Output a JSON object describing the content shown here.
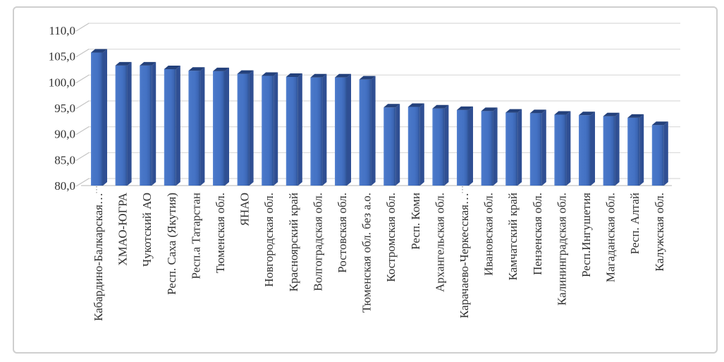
{
  "chart_data": {
    "type": "bar",
    "title": "",
    "xlabel": "",
    "ylabel": "",
    "categories": [
      "Кабардино-Балкарская…",
      "ХМАО-ЮГРА",
      "Чукотский АО",
      "Респ. Саха (Якутия)",
      "Респ.а Татарстан",
      "Тюменская обл.",
      "ЯНАО",
      "Новгородская обл.",
      "Красноярский край",
      "Волгоградская обл.",
      "Ростовская обл.",
      "Тюменская обл. без а.о.",
      "Костромская обл.",
      "Респ. Коми",
      "Архангельская обл.",
      "Карачаево-Черкесская…",
      "Ивановская обл.",
      "Камчатский край",
      "Пензенская обл.",
      "Калининградская обл.",
      "Респ.Ингушетия",
      "Магаданская обл.",
      "Респ. Алтай",
      "Калужская обл."
    ],
    "values": [
      105.7,
      103.2,
      103.2,
      102.5,
      102.2,
      102.1,
      101.6,
      101.2,
      101.0,
      100.9,
      100.9,
      100.5,
      95.1,
      95.2,
      94.9,
      94.6,
      94.4,
      94.1,
      94.0,
      93.7,
      93.6,
      93.4,
      93.1,
      91.7
    ],
    "ylim": [
      80,
      110
    ],
    "ytick_step": 5,
    "ytick_labels": [
      "110,0",
      "105,0",
      "100,0",
      "95,0",
      "90,0",
      "85,0",
      "80,0"
    ],
    "grid": true,
    "legend_position": "none",
    "style": "excel-3d-column",
    "dotted_leader_indices": [
      0,
      15
    ]
  },
  "colors": {
    "bar_front": "#4472C4",
    "bar_front_light": "#5a86d2",
    "bar_front_dark": "#2d5090",
    "bar_side": "#2f4f93",
    "bar_top": "#24417b",
    "gridline": "#d9d9d9",
    "axis_line": "#c3c3c3",
    "tick_line": "#c3c3c3",
    "leader_line": "#7f7f7f",
    "label_text": "#333333",
    "frame_border": "#cfcfcf",
    "background": "#ffffff"
  }
}
